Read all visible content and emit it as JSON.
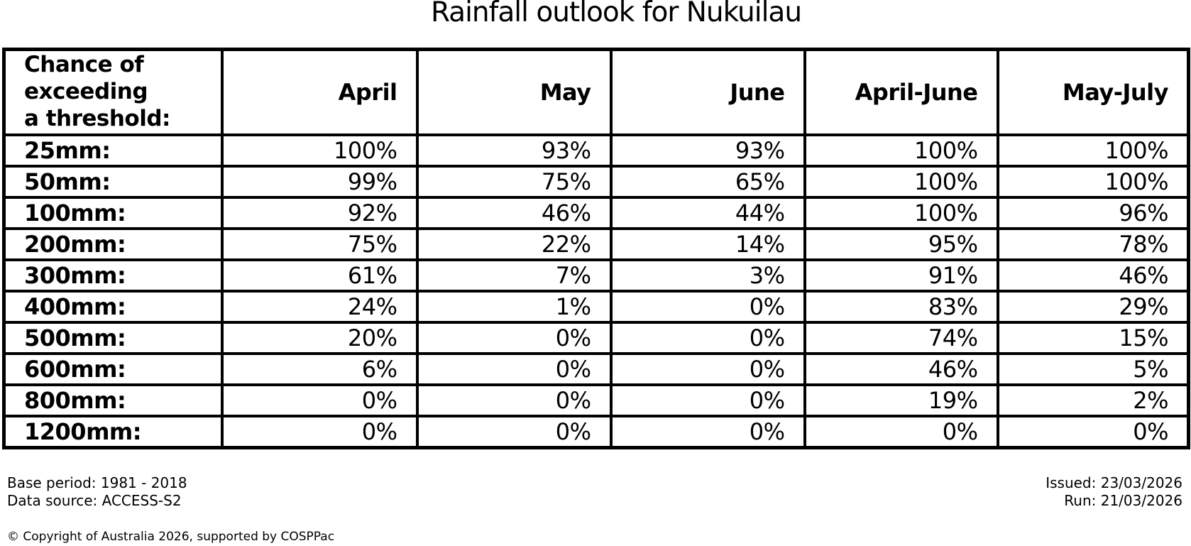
{
  "title": "Rainfall outlook for Nukuilau",
  "table": {
    "header": {
      "label": "Chance of\nexceeding\na threshold:",
      "columns": [
        "April",
        "May",
        "June",
        "April-June",
        "May-July"
      ]
    },
    "rows": [
      {
        "threshold": "25mm:",
        "values": [
          "100%",
          "93%",
          "93%",
          "100%",
          "100%"
        ]
      },
      {
        "threshold": "50mm:",
        "values": [
          "99%",
          "75%",
          "65%",
          "100%",
          "100%"
        ]
      },
      {
        "threshold": "100mm:",
        "values": [
          "92%",
          "46%",
          "44%",
          "100%",
          "96%"
        ]
      },
      {
        "threshold": "200mm:",
        "values": [
          "75%",
          "22%",
          "14%",
          "95%",
          "78%"
        ]
      },
      {
        "threshold": "300mm:",
        "values": [
          "61%",
          "7%",
          "3%",
          "91%",
          "46%"
        ]
      },
      {
        "threshold": "400mm:",
        "values": [
          "24%",
          "1%",
          "0%",
          "83%",
          "29%"
        ]
      },
      {
        "threshold": "500mm:",
        "values": [
          "20%",
          "0%",
          "0%",
          "74%",
          "15%"
        ]
      },
      {
        "threshold": "600mm:",
        "values": [
          "6%",
          "0%",
          "0%",
          "46%",
          "5%"
        ]
      },
      {
        "threshold": "800mm:",
        "values": [
          "0%",
          "0%",
          "0%",
          "19%",
          "2%"
        ]
      },
      {
        "threshold": "1200mm:",
        "values": [
          "0%",
          "0%",
          "0%",
          "0%",
          "0%"
        ]
      }
    ]
  },
  "footer": {
    "base_period": "Base period: 1981 - 2018",
    "data_source": "Data source: ACCESS-S2",
    "issued": "Issued: 23/03/2026",
    "run": "Run: 21/03/2026",
    "copyright": "© Copyright of Australia 2026, supported by COSPPac"
  },
  "colors": {
    "text": "#000000",
    "border": "#000000",
    "background": "#ffffff"
  },
  "chart_data": {
    "type": "table",
    "title": "Rainfall outlook for Nukuilau",
    "row_label_header": "Chance of exceeding a threshold:",
    "columns": [
      "April",
      "May",
      "June",
      "April-June",
      "May-July"
    ],
    "rows": [
      "25mm",
      "50mm",
      "100mm",
      "200mm",
      "300mm",
      "400mm",
      "500mm",
      "600mm",
      "800mm",
      "1200mm"
    ],
    "values_percent": [
      [
        100,
        93,
        93,
        100,
        100
      ],
      [
        99,
        75,
        65,
        100,
        100
      ],
      [
        92,
        46,
        44,
        100,
        96
      ],
      [
        75,
        22,
        14,
        95,
        78
      ],
      [
        61,
        7,
        3,
        91,
        46
      ],
      [
        24,
        1,
        0,
        83,
        29
      ],
      [
        20,
        0,
        0,
        74,
        15
      ],
      [
        6,
        0,
        0,
        46,
        5
      ],
      [
        0,
        0,
        0,
        19,
        2
      ],
      [
        0,
        0,
        0,
        0,
        0
      ]
    ]
  }
}
